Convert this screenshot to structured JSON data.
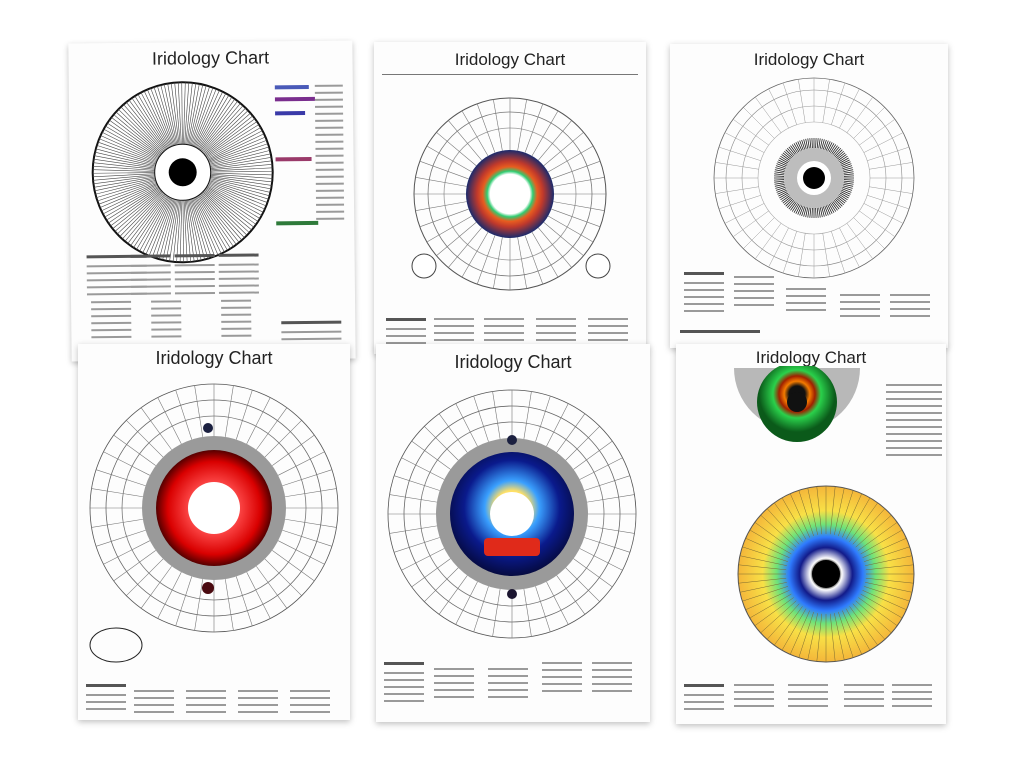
{
  "sheets": [
    {
      "title": "Iridology Chart"
    },
    {
      "title": "Iridology Chart"
    },
    {
      "title": "Iridology Chart"
    },
    {
      "title": "Iridology Chart"
    },
    {
      "title": "Iridology Chart"
    },
    {
      "title": "Iridology Chart"
    }
  ],
  "colors": {
    "sheet3_ring": [
      "#222222",
      "#9a9a9a"
    ],
    "sheet2_ring": [
      "#c0392b",
      "#e85d1f",
      "#2ecc71",
      "#1a2a6c"
    ],
    "sheet4_ring": [
      "#d90000",
      "#ff4d4d",
      "#7a7a7a"
    ],
    "sheet5_ring": [
      "#ffe066",
      "#3aa0ff",
      "#0a1a8c",
      "#e02a1a"
    ],
    "sheet6_top": [
      "#f47b00",
      "#2ad14b",
      "#b8b8b8"
    ],
    "sheet6_bottom": [
      "#f4b63a",
      "#f8e046",
      "#6de27a",
      "#2f7bff",
      "#121b8a"
    ],
    "legend_swatches": [
      "#4a5ab8",
      "#7a2e8e",
      "#2e7a3a",
      "#3a3aa8",
      "#9a3a6a"
    ]
  }
}
